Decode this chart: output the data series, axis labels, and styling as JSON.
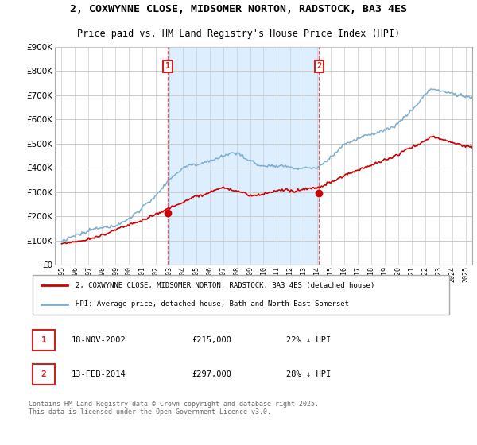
{
  "title": "2, COXWYNNE CLOSE, MIDSOMER NORTON, RADSTOCK, BA3 4ES",
  "subtitle": "Price paid vs. HM Land Registry's House Price Index (HPI)",
  "legend_line1": "2, COXWYNNE CLOSE, MIDSOMER NORTON, RADSTOCK, BA3 4ES (detached house)",
  "legend_line2": "HPI: Average price, detached house, Bath and North East Somerset",
  "sale1_date": "18-NOV-2002",
  "sale1_price": "£215,000",
  "sale1_hpi": "22% ↓ HPI",
  "sale1_year": 2002.88,
  "sale1_value": 215000,
  "sale2_date": "13-FEB-2014",
  "sale2_price": "£297,000",
  "sale2_hpi": "28% ↓ HPI",
  "sale2_year": 2014.12,
  "sale2_value": 297000,
  "red_line_color": "#cc0000",
  "blue_line_color": "#7aadcf",
  "shade_color": "#ddeeff",
  "vline_color": "#dd4444",
  "marker_box_color": "#cc2222",
  "background_color": "#ffffff",
  "grid_color": "#cccccc",
  "ylim": [
    0,
    900000
  ],
  "yticks": [
    0,
    100000,
    200000,
    300000,
    400000,
    500000,
    600000,
    700000,
    800000,
    900000
  ],
  "xlim_start": 1994.5,
  "xlim_end": 2025.5,
  "footer": "Contains HM Land Registry data © Crown copyright and database right 2025.\nThis data is licensed under the Open Government Licence v3.0."
}
